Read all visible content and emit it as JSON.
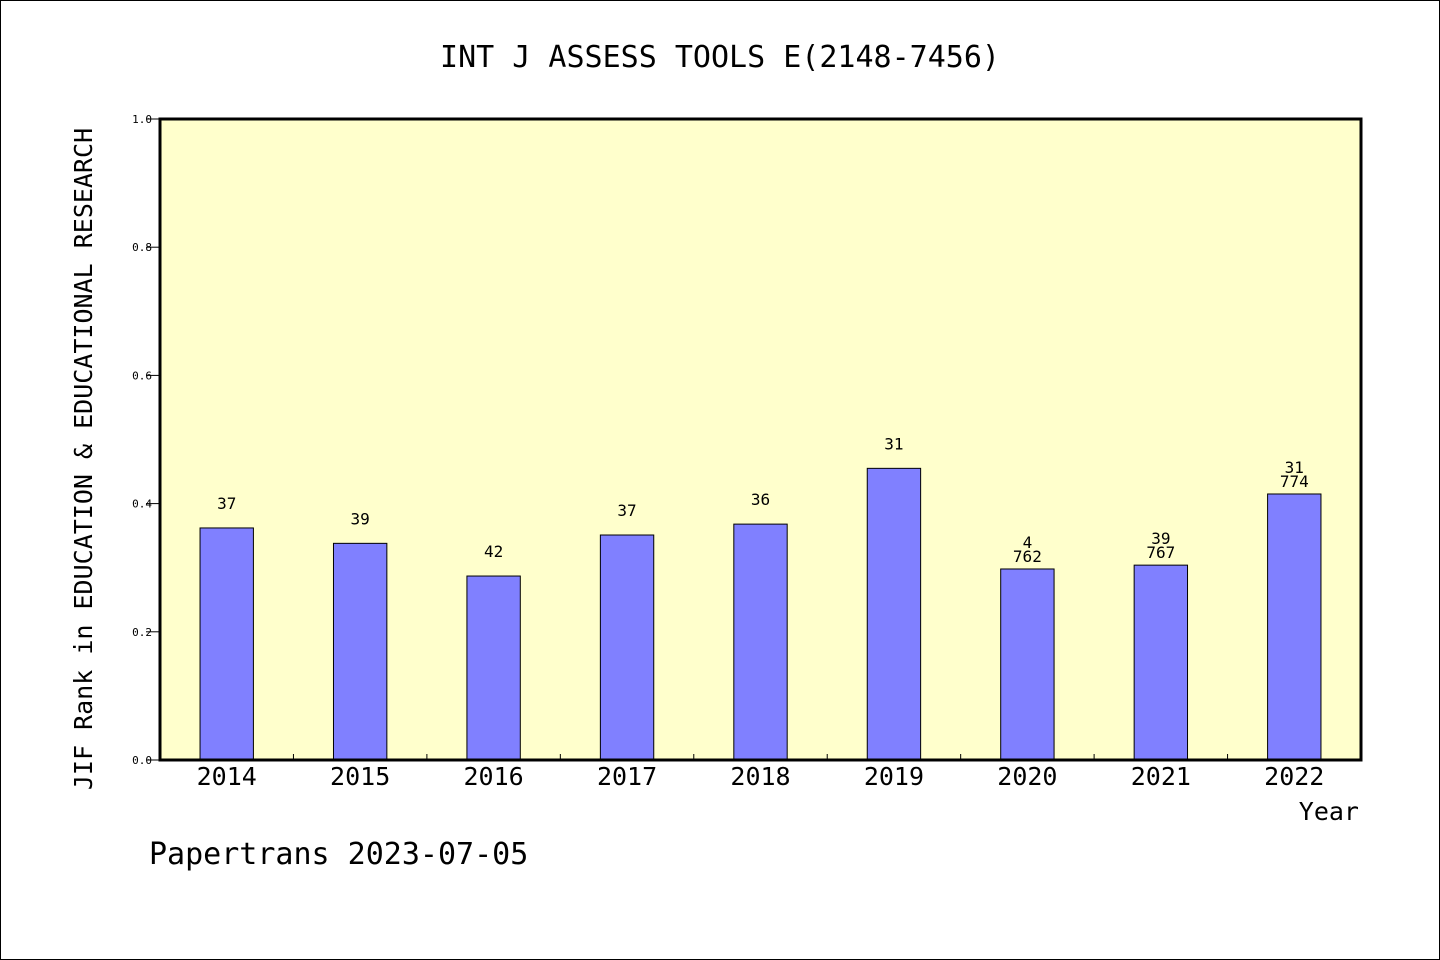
{
  "footer": {
    "text": "Papertrans 2023-07-05"
  },
  "colors": {
    "plot_bg": "#ffffcc",
    "bar_fill": "#8080ff",
    "bar_stroke": "#000000"
  },
  "chart_data": {
    "type": "bar",
    "title": "INT J ASSESS TOOLS E(2148-7456)",
    "xlabel": "Year",
    "ylabel": "JIF Rank in EDUCATION & EDUCATIONAL RESEARCH",
    "ylim": [
      0,
      1
    ],
    "yticks": [
      "0.0",
      "0.2",
      "0.4",
      "0.6",
      "0.8",
      "1.0"
    ],
    "ytick_values": [
      0,
      0.2,
      0.4,
      0.6,
      0.8,
      1.0
    ],
    "categories": [
      "2014",
      "2015",
      "2016",
      "2017",
      "2018",
      "2019",
      "2020",
      "2021",
      "2022"
    ],
    "values": [
      0.362,
      0.338,
      0.287,
      0.351,
      0.368,
      0.455,
      0.298,
      0.304,
      0.415
    ],
    "labels": [
      [
        "37"
      ],
      [
        "39"
      ],
      [
        "42"
      ],
      [
        "37"
      ],
      [
        "36"
      ],
      [
        "31"
      ],
      [
        "4",
        "762"
      ],
      [
        "39",
        "767"
      ],
      [
        "31",
        "774"
      ]
    ],
    "grid": false
  }
}
